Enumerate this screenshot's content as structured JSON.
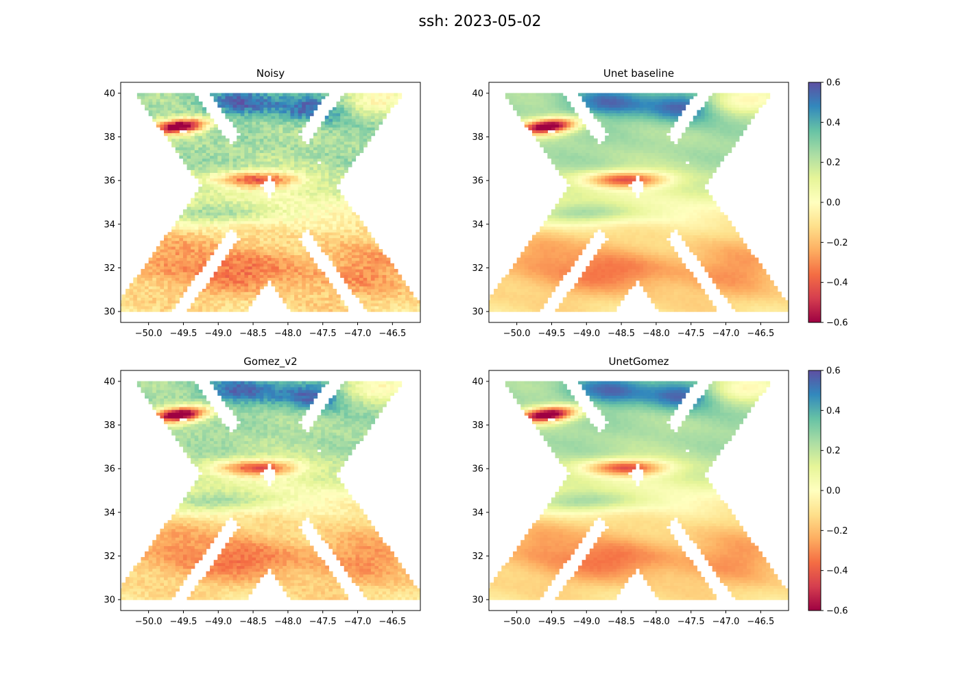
{
  "figure": {
    "title": "ssh: 2023-05-02"
  },
  "chart_data": [
    {
      "type": "heatmap",
      "title": "Noisy",
      "xlim": [
        -50.4,
        -46.1
      ],
      "ylim": [
        29.5,
        40.5
      ],
      "xticks": [
        "−50.0",
        "−49.5",
        "−49.0",
        "−48.5",
        "−48.0",
        "−47.5",
        "−47.0",
        "−46.5"
      ],
      "yticks": [
        "30",
        "32",
        "34",
        "36",
        "38",
        "40"
      ],
      "noise": 0.06
    },
    {
      "type": "heatmap",
      "title": "Unet baseline",
      "xlim": [
        -50.4,
        -46.1
      ],
      "ylim": [
        29.5,
        40.5
      ],
      "xticks": [
        "−50.0",
        "−49.5",
        "−49.0",
        "−48.5",
        "−48.0",
        "−47.5",
        "−47.0",
        "−46.5"
      ],
      "yticks": [
        "30",
        "32",
        "34",
        "36",
        "38",
        "40"
      ],
      "noise": 0.01
    },
    {
      "type": "heatmap",
      "title": "Gomez_v2",
      "xlim": [
        -50.4,
        -46.1
      ],
      "ylim": [
        29.5,
        40.5
      ],
      "xticks": [
        "−50.0",
        "−49.5",
        "−49.0",
        "−48.5",
        "−48.0",
        "−47.5",
        "−47.0",
        "−46.5"
      ],
      "yticks": [
        "30",
        "32",
        "34",
        "36",
        "38",
        "40"
      ],
      "noise": 0.04
    },
    {
      "type": "heatmap",
      "title": "UnetGomez",
      "xlim": [
        -50.4,
        -46.1
      ],
      "ylim": [
        29.5,
        40.5
      ],
      "xticks": [
        "−50.0",
        "−49.5",
        "−49.0",
        "−48.5",
        "−48.0",
        "−47.5",
        "−47.0",
        "−46.5"
      ],
      "yticks": [
        "30",
        "32",
        "34",
        "36",
        "38",
        "40"
      ],
      "noise": 0.01
    }
  ],
  "colorbar": {
    "colormap": "Spectral",
    "vmin": -0.6,
    "vmax": 0.6,
    "ticks": [
      "0.6",
      "0.4",
      "0.2",
      "0.0",
      "−0.2",
      "−0.4",
      "−0.6"
    ],
    "colors": [
      "#9e0142",
      "#d53e4f",
      "#f46d43",
      "#fdae61",
      "#fee08b",
      "#ffffbf",
      "#e6f598",
      "#abdda4",
      "#66c2a5",
      "#3288bd",
      "#5e4fa2"
    ]
  }
}
